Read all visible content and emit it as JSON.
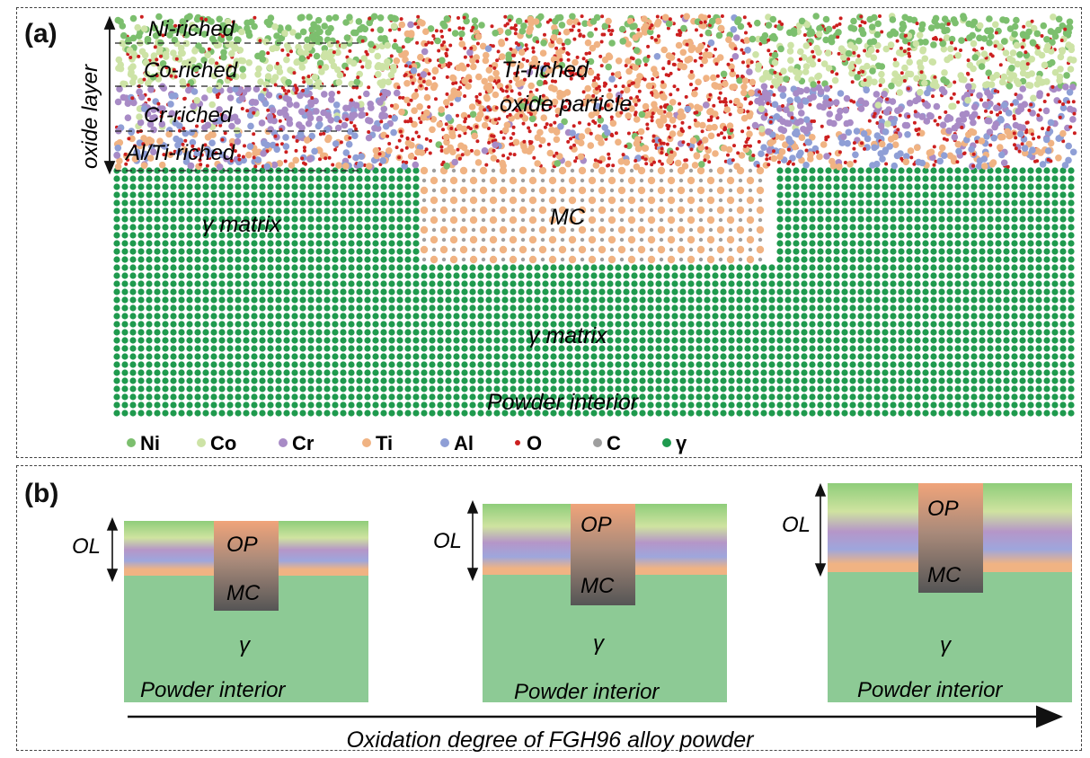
{
  "panel_a": {
    "label": "(a)",
    "oxide_layer_label": "oxide layer",
    "layers": [
      "Ni-riched",
      "Co-riched",
      "Cr-riched",
      "Al/Ti-riched"
    ],
    "particle_label_1": "Ti-riched",
    "particle_label_2": "oxide particle",
    "mc_label": "MC",
    "matrix_label_left": "γ matrix",
    "matrix_label_center": "γ matrix",
    "interior_label": "Powder interior",
    "legend": [
      {
        "name": "Ni",
        "color": "#7cbf6e"
      },
      {
        "name": "Co",
        "color": "#cde3a6"
      },
      {
        "name": "Cr",
        "color": "#a88bc6"
      },
      {
        "name": "Ti",
        "color": "#f0b383"
      },
      {
        "name": "Al",
        "color": "#8f9fd6"
      },
      {
        "name": "O",
        "color": "#cc1f1f"
      },
      {
        "name": "C",
        "color": "#9e9e9e"
      },
      {
        "name": "γ",
        "color": "#1f9a4e"
      }
    ]
  },
  "panel_b": {
    "label": "(b)",
    "schematics": [
      {
        "ol": "OL",
        "op": "OP",
        "mc": "MC",
        "gamma": "γ",
        "interior": "Powder interior"
      },
      {
        "ol": "OL",
        "op": "OP",
        "mc": "MC",
        "gamma": "γ",
        "interior": "Powder interior"
      },
      {
        "ol": "OL",
        "op": "OP",
        "mc": "MC",
        "gamma": "γ",
        "interior": "Powder interior"
      }
    ],
    "axis_label": "Oxidation degree of FGH96 alloy powder"
  }
}
